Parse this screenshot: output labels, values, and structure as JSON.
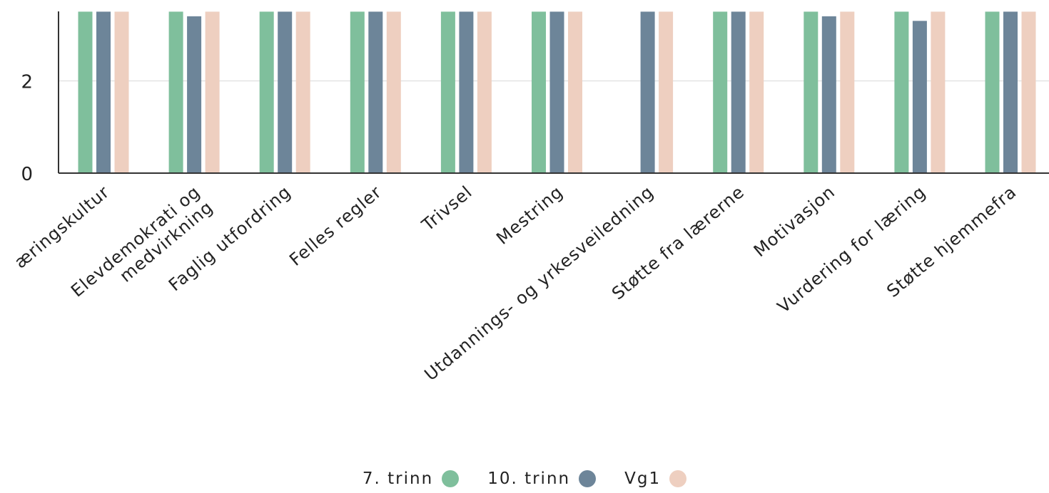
{
  "chart_data": {
    "type": "bar",
    "categories": [
      "Læringskultur",
      "Elevdemokrati og medvirkning",
      "Faglig utfordring",
      "Felles regler",
      "Trivsel",
      "Mestring",
      "Utdannings- og yrkesveiledning",
      "Støtte fra lærerne",
      "Motivasjon",
      "Vurdering for læring",
      "Støtte hjemmefra"
    ],
    "tick_labels": [
      [
        "æringskultur"
      ],
      [
        "Elevdemokrati og",
        "medvirkning"
      ],
      [
        "Faglig utfordring"
      ],
      [
        "Felles regler"
      ],
      [
        "Trivsel"
      ],
      [
        "Mestring"
      ],
      [
        "Utdannings- og yrkesveiledning"
      ],
      [
        "Støtte fra lærerne"
      ],
      [
        "Motivasjon"
      ],
      [
        "Vurdering for læring"
      ],
      [
        "Støtte hjemmefra"
      ]
    ],
    "series": [
      {
        "name": "7. trinn",
        "color": "#7fbf9c",
        "values": [
          3.5,
          3.5,
          3.5,
          3.5,
          3.5,
          3.5,
          null,
          3.5,
          3.5,
          3.5,
          3.5
        ]
      },
      {
        "name": "10. trinn",
        "color": "#6d8599",
        "values": [
          3.5,
          3.4,
          3.5,
          3.5,
          3.5,
          3.5,
          3.5,
          3.5,
          3.4,
          3.3,
          3.5
        ]
      },
      {
        "name": "Vg1",
        "color": "#eecfc0",
        "values": [
          3.5,
          3.5,
          3.5,
          3.5,
          3.5,
          3.5,
          3.5,
          3.5,
          3.5,
          3.5,
          3.5
        ]
      }
    ],
    "yticks": [
      "0",
      "2"
    ],
    "y_visible_range": [
      0,
      3.5
    ],
    "grid": true,
    "legend_position": "bottom-center",
    "title": "",
    "xlabel": "",
    "ylabel": ""
  }
}
